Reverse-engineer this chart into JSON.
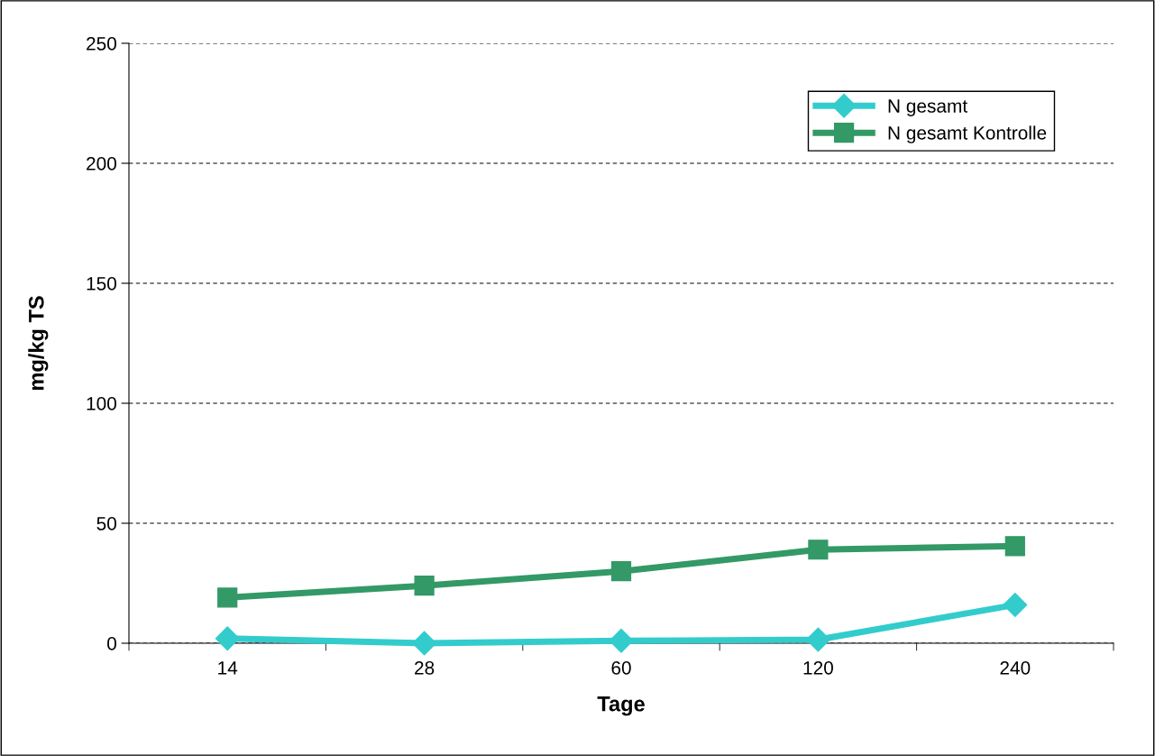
{
  "chart_data": {
    "type": "line",
    "xlabel": "Tage",
    "ylabel": "mg/kg TS",
    "categories": [
      "14",
      "28",
      "60",
      "120",
      "240"
    ],
    "series": [
      {
        "name": "N gesamt",
        "color": "#33cccc",
        "marker": "diamond",
        "values": [
          2,
          0,
          1,
          1.5,
          16
        ]
      },
      {
        "name": "N gesamt Kontrolle",
        "color": "#339966",
        "marker": "square",
        "values": [
          19,
          24,
          30,
          39,
          40.5
        ]
      }
    ],
    "ylim": [
      0,
      250
    ],
    "yticks": [
      0,
      50,
      100,
      150,
      200,
      250
    ],
    "grid": "y",
    "line_style": "solid",
    "legend": "top right"
  }
}
